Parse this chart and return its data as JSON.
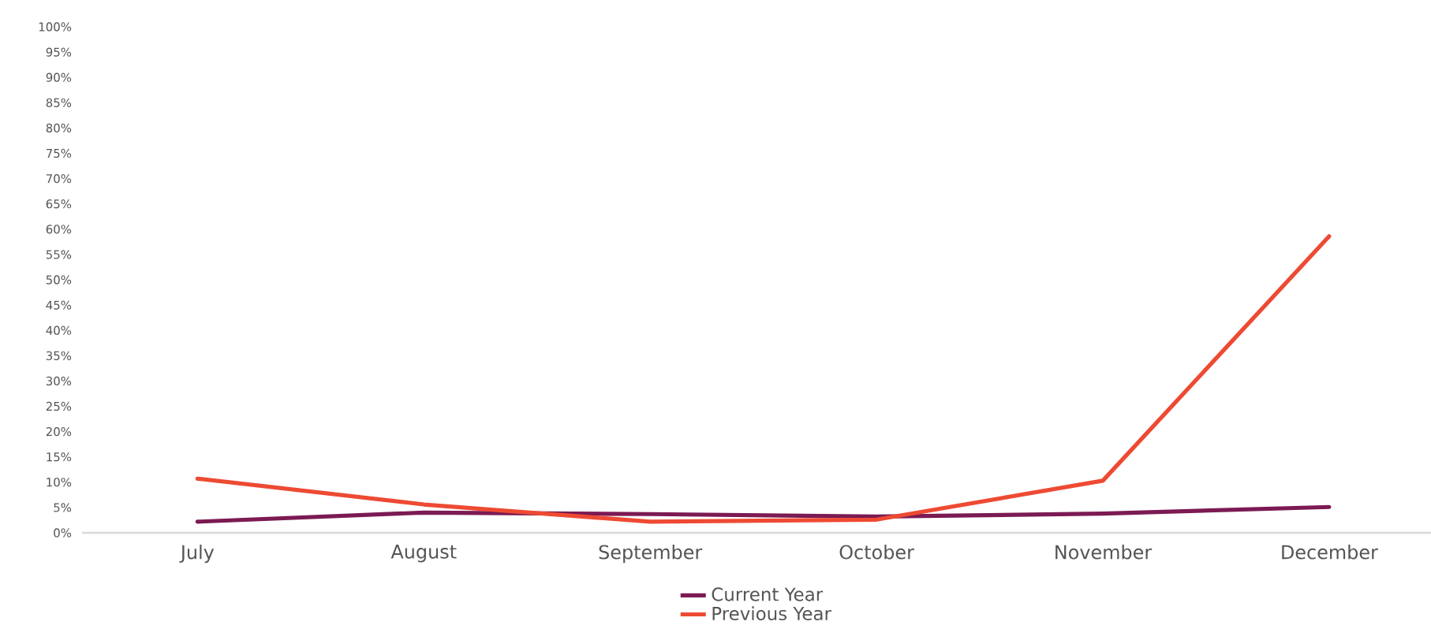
{
  "chart_data": {
    "type": "line",
    "categories": [
      "July",
      "August",
      "September",
      "October",
      "November",
      "December"
    ],
    "series": [
      {
        "name": "Current Year",
        "color": "#7b1a53",
        "values": [
          2.2,
          4.0,
          3.7,
          3.2,
          3.8,
          5.1
        ]
      },
      {
        "name": "Previous Year",
        "color": "#ee4a33",
        "values": [
          10.7,
          5.6,
          2.2,
          2.6,
          10.3,
          58.6
        ]
      }
    ],
    "ylim": [
      0,
      100
    ],
    "yticks": [
      {
        "value": 0,
        "label": "0%"
      },
      {
        "value": 5,
        "label": "5%"
      },
      {
        "value": 10,
        "label": "10%"
      },
      {
        "value": 15,
        "label": "15%"
      },
      {
        "value": 20,
        "label": "20%"
      },
      {
        "value": 25,
        "label": "25%"
      },
      {
        "value": 30,
        "label": "30%"
      },
      {
        "value": 35,
        "label": "35%"
      },
      {
        "value": 40,
        "label": "40%"
      },
      {
        "value": 45,
        "label": "45%"
      },
      {
        "value": 50,
        "label": "50%"
      },
      {
        "value": 55,
        "label": "55%"
      },
      {
        "value": 60,
        "label": "60%"
      },
      {
        "value": 65,
        "label": "65%"
      },
      {
        "value": 70,
        "label": "70%"
      },
      {
        "value": 75,
        "label": "75%"
      },
      {
        "value": 80,
        "label": "80%"
      },
      {
        "value": 85,
        "label": "85%"
      },
      {
        "value": 90,
        "label": "90%"
      },
      {
        "value": 95,
        "label": "95%"
      },
      {
        "value": 100,
        "label": "100%"
      }
    ],
    "grid": false,
    "legend": "bottom",
    "marker": "none",
    "line_style": "solid"
  }
}
